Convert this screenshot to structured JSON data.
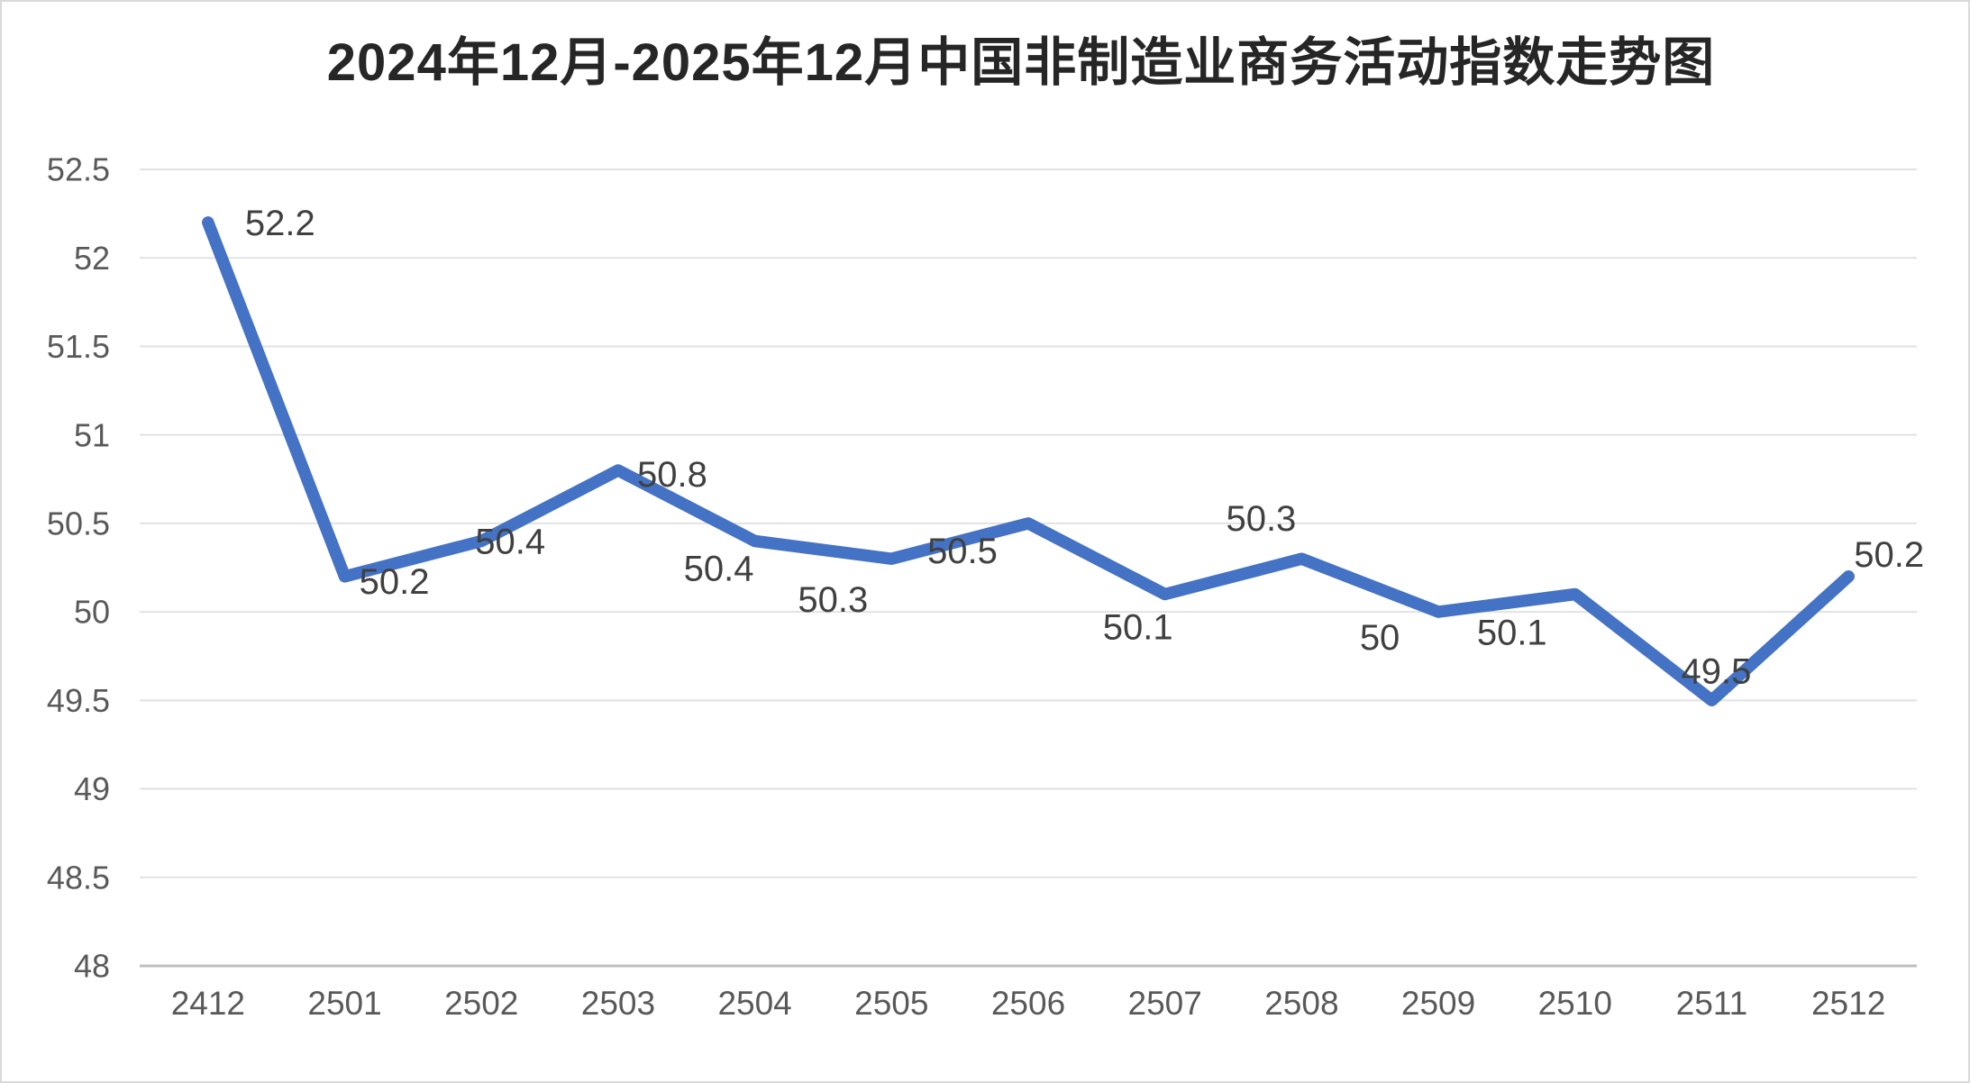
{
  "chart": {
    "title": "2024年12月-2025年12月中国非制造业商务活动指数走势图"
  },
  "colors": {
    "line": "#4472C4",
    "gridline": "#e2e2e2",
    "axis_line": "#bfbfbf",
    "tick_label": "#595959",
    "data_label": "#404040",
    "title": "#262626",
    "background": "#ffffff",
    "frame_border": "#d9d9d9"
  },
  "chart_data": {
    "type": "line",
    "title": "2024年12月-2025年12月中国非制造业商务活动指数走势图",
    "categories": [
      "2412",
      "2501",
      "2502",
      "2503",
      "2504",
      "2505",
      "2506",
      "2507",
      "2508",
      "2509",
      "2510",
      "2511",
      "2512"
    ],
    "values": [
      52.2,
      50.2,
      50.4,
      50.8,
      50.4,
      50.3,
      50.5,
      50.1,
      50.3,
      50,
      50.1,
      49.5,
      50.2
    ],
    "data_labels": [
      "52.2",
      "50.2",
      "50.4",
      "50.8",
      "50.4",
      "50.3",
      "50.5",
      "50.1",
      "50.3",
      "50",
      "50.1",
      "49.5",
      "50.2"
    ],
    "xlabel": "",
    "ylabel": "",
    "ylim": [
      48,
      52.5
    ],
    "ytick_step": 0.5,
    "ytick_labels": [
      "48",
      "48.5",
      "49",
      "49.5",
      "50",
      "50.5",
      "51",
      "51.5",
      "52",
      "52.5"
    ],
    "grid": "horizontal-on",
    "legend": "none",
    "line_color": "#4472C4",
    "marker": "none",
    "show_point_labels": true
  }
}
